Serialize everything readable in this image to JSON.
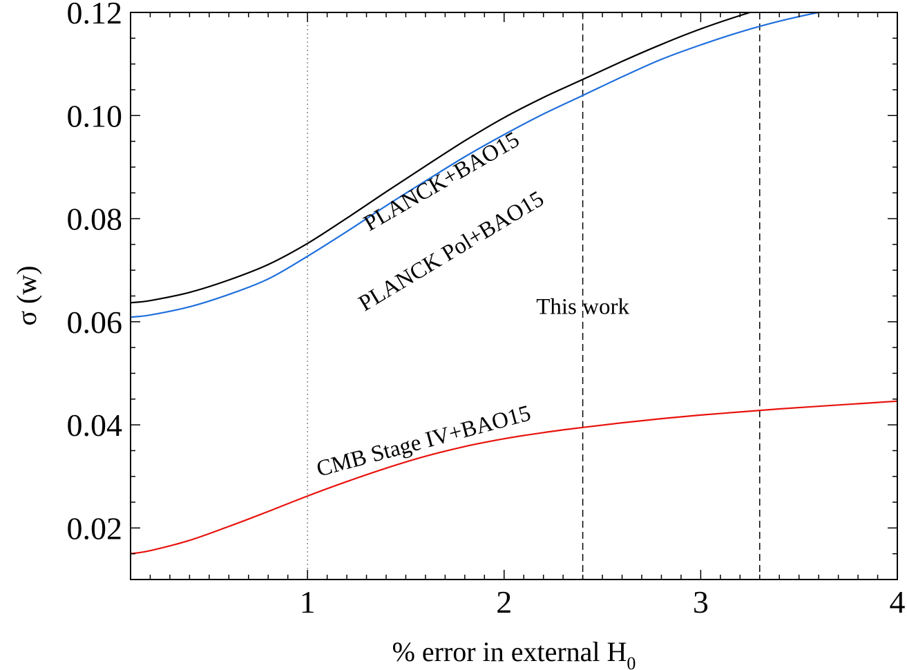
{
  "chart_data": {
    "type": "line",
    "title": "",
    "xlabel_main": "% error in external H",
    "xlabel_sub": "0",
    "ylabel": "σ (w)",
    "xlim": [
      0.1,
      4.0
    ],
    "ylim": [
      0.01,
      0.12
    ],
    "xticks": [
      1,
      2,
      3,
      4
    ],
    "xtick_labels": [
      "1",
      "2",
      "3",
      "4"
    ],
    "yticks": [
      0.02,
      0.04,
      0.06,
      0.08,
      0.1,
      0.12
    ],
    "ytick_labels": [
      "0.02",
      "0.04",
      "0.06",
      "0.08",
      "0.10",
      "0.12"
    ],
    "grid": false,
    "legend": "none",
    "x": [
      0.1,
      0.2,
      0.4,
      0.6,
      0.8,
      1.0,
      1.2,
      1.4,
      1.6,
      1.8,
      2.0,
      2.2,
      2.4,
      2.6,
      2.8,
      3.0,
      3.2,
      3.4,
      3.6,
      3.8,
      4.0
    ],
    "series": [
      {
        "name": "PLANCK+BAO15",
        "color": "#000000",
        "values": [
          0.0637,
          0.0641,
          0.0657,
          0.0681,
          0.0711,
          0.0752,
          0.0801,
          0.0852,
          0.0902,
          0.0951,
          0.0996,
          0.1035,
          0.107,
          0.1105,
          0.1138,
          0.1168,
          0.1194,
          0.1217,
          0.1237,
          0.1254,
          0.1268
        ]
      },
      {
        "name": "PLANCK Pol+BAO15",
        "color": "#1f6fdc",
        "values": [
          0.0609,
          0.0613,
          0.0629,
          0.0653,
          0.0683,
          0.0727,
          0.0775,
          0.0825,
          0.0873,
          0.092,
          0.0963,
          0.1003,
          0.1039,
          0.1075,
          0.1109,
          0.1137,
          0.1162,
          0.1183,
          0.12,
          0.1212,
          0.1222
        ]
      },
      {
        "name": "CMB Stage IV+BAO15",
        "color": "#e8120c",
        "values": [
          0.015,
          0.0156,
          0.0176,
          0.0203,
          0.0232,
          0.0262,
          0.029,
          0.0316,
          0.0339,
          0.0358,
          0.0373,
          0.0385,
          0.0395,
          0.0404,
          0.0412,
          0.0419,
          0.0425,
          0.0431,
          0.0436,
          0.0441,
          0.0446
        ]
      }
    ],
    "vlines": [
      {
        "x": 1.0,
        "style": "dotted",
        "color": "#888888"
      },
      {
        "x": 2.4,
        "style": "dashed",
        "color": "#000000"
      },
      {
        "x": 3.3,
        "style": "dashed",
        "color": "#000000"
      }
    ],
    "annotations": [
      {
        "text": "PLANCK+BAO15",
        "x": 1.7,
        "y": 0.086,
        "angle": -30
      },
      {
        "text": "PLANCK Pol+BAO15",
        "x": 1.75,
        "y": 0.0725,
        "angle": -31
      },
      {
        "text": "This work",
        "x": 2.4,
        "y": 0.0615,
        "angle": 0
      },
      {
        "text": "CMB Stage IV+BAO15",
        "x": 1.6,
        "y": 0.0355,
        "angle": -15
      }
    ]
  }
}
